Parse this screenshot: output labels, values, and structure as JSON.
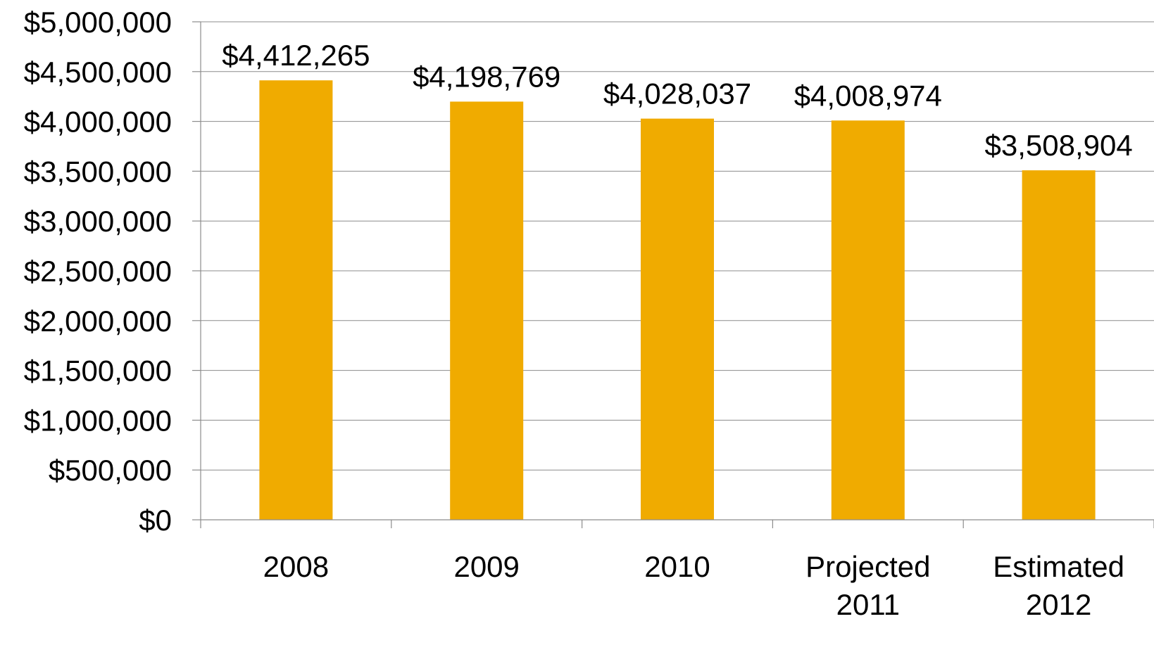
{
  "chart_data": {
    "type": "bar",
    "title": "",
    "xlabel": "",
    "ylabel": "",
    "categories": [
      "2008",
      "2009",
      "2010",
      "Projected 2011",
      "Estimated 2012"
    ],
    "values": [
      4412265,
      4198769,
      4028037,
      4008974,
      3508904
    ],
    "data_labels": [
      "$4,412,265",
      "$4,198,769",
      "$4,028,037",
      "$4,008,974",
      "$3,508,904"
    ],
    "ylim": [
      0,
      5000000
    ],
    "y_ticks": [
      0,
      500000,
      1000000,
      1500000,
      2000000,
      2500000,
      3000000,
      3500000,
      4000000,
      4500000,
      5000000
    ],
    "y_tick_labels": [
      "$0",
      "$500,000",
      "$1,000,000",
      "$1,500,000",
      "$2,000,000",
      "$2,500,000",
      "$3,000,000",
      "$3,500,000",
      "$4,000,000",
      "$4,500,000",
      "$5,000,000"
    ],
    "grid": true,
    "legend": "none",
    "colors": {
      "bar": "#F0AB00",
      "grid": "#8C8C8C",
      "text": "#000000"
    }
  }
}
